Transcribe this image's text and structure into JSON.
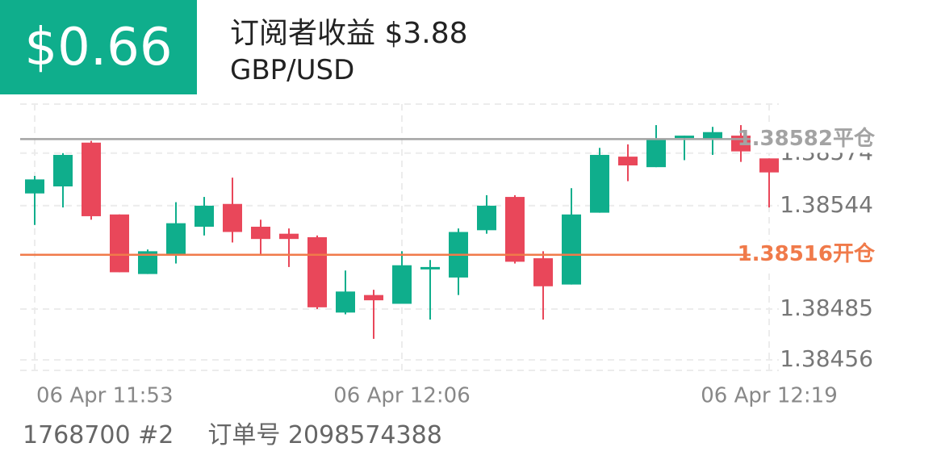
{
  "header": {
    "amount": "$0.66",
    "title": "订阅者收益 $3.88",
    "symbol": "GBP/USD"
  },
  "footer": {
    "account": "1768700 #2",
    "order": "订单号 2098574388"
  },
  "chart_data": {
    "type": "candlestick",
    "categories": [
      "06 Apr  11:53",
      null,
      null,
      null,
      null,
      null,
      null,
      null,
      null,
      null,
      null,
      null,
      null,
      "06 Apr  12:06",
      null,
      null,
      null,
      null,
      null,
      null,
      null,
      null,
      null,
      null,
      null,
      null,
      "06 Apr  12:19"
    ],
    "open": [
      1.38551,
      1.38555,
      1.3858,
      1.38539,
      1.38505,
      1.38516,
      1.38532,
      1.38545,
      1.38532,
      1.38528,
      1.38526,
      1.38483,
      1.38493,
      1.38488,
      1.38508,
      1.38503,
      1.3853,
      1.38549,
      1.38514,
      1.38499,
      1.3854,
      1.38572,
      1.38566,
      1.38583,
      1.38582,
      1.38584,
      1.38571
    ],
    "high": [
      1.38561,
      1.38574,
      1.38581,
      1.38539,
      1.38519,
      1.38546,
      1.38549,
      1.3856,
      1.38536,
      1.38531,
      1.38527,
      1.38507,
      1.38496,
      1.38518,
      1.38513,
      1.38531,
      1.3855,
      1.3855,
      1.38518,
      1.38554,
      1.38577,
      1.38579,
      1.3859,
      1.38584,
      1.38589,
      1.3859,
      1.38571
    ],
    "low": [
      1.38533,
      1.38543,
      1.38536,
      1.38506,
      1.38505,
      1.38511,
      1.38527,
      1.38523,
      1.38516,
      1.38509,
      1.38485,
      1.38482,
      1.38468,
      1.38488,
      1.38479,
      1.38493,
      1.38528,
      1.38511,
      1.38479,
      1.38499,
      1.3854,
      1.38558,
      1.38566,
      1.3857,
      1.38573,
      1.38569,
      1.38543
    ],
    "close": [
      1.38559,
      1.38573,
      1.38538,
      1.38506,
      1.38518,
      1.38534,
      1.38544,
      1.38529,
      1.38525,
      1.38525,
      1.38486,
      1.38495,
      1.3849,
      1.3851,
      1.38509,
      1.38529,
      1.38544,
      1.38512,
      1.38498,
      1.38539,
      1.38573,
      1.38567,
      1.38582,
      1.38584,
      1.38586,
      1.38575,
      1.38563
    ],
    "up_color": "#0fae8c",
    "down_color": "#e9475a",
    "ylim": [
      1.3845,
      1.38602
    ],
    "yticks": [
      1.38574,
      1.38544,
      1.38485,
      1.38456
    ],
    "grid": true,
    "reference_lines": [
      {
        "value": 1.38582,
        "label": "1.38582平仓",
        "color": "#a3a3a3"
      },
      {
        "value": 1.38516,
        "label": "1.38516开仓",
        "color": "#f07a4a"
      }
    ]
  }
}
